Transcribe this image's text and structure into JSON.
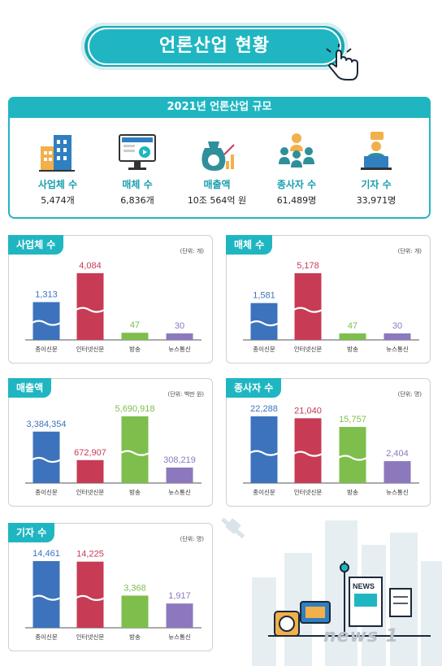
{
  "title": "언론산업 현황",
  "summary": {
    "title": "2021년 언론산업 규모",
    "items": [
      {
        "label": "사업체 수",
        "value": "5,474개",
        "icon": "building-icon"
      },
      {
        "label": "매체 수",
        "value": "6,836개",
        "icon": "news-monitor-icon"
      },
      {
        "label": "매출액",
        "value": "10조 564억 원",
        "icon": "money-bag-chart-icon"
      },
      {
        "label": "종사자 수",
        "value": "61,489명",
        "icon": "people-group-icon"
      },
      {
        "label": "기자 수",
        "value": "33,971명",
        "icon": "reporter-laptop-icon"
      }
    ]
  },
  "watermark": "news 1",
  "colors": {
    "teal": "#1fb6c2",
    "paper": "#3d73bd",
    "internet": "#c73b55",
    "broadcast": "#7dbe4c",
    "newswire": "#8c79bd"
  },
  "chart_data": [
    {
      "type": "bar",
      "title": "사업체 수",
      "unit": "(단위: 개)",
      "categories": [
        "종이신문",
        "인터넷신문",
        "방송",
        "뉴스통신"
      ],
      "values": [
        1313,
        4084,
        47,
        30
      ],
      "labels": [
        "1,313",
        "4,084",
        "47",
        "30"
      ],
      "broken": [
        true,
        true,
        false,
        false
      ]
    },
    {
      "type": "bar",
      "title": "매체 수",
      "unit": "(단위: 개)",
      "categories": [
        "종이신문",
        "인터넷신문",
        "방송",
        "뉴스통신"
      ],
      "values": [
        1581,
        5178,
        47,
        30
      ],
      "labels": [
        "1,581",
        "5,178",
        "47",
        "30"
      ],
      "broken": [
        true,
        true,
        false,
        false
      ]
    },
    {
      "type": "bar",
      "title": "매출액",
      "unit": "(단위: 백만 원)",
      "categories": [
        "종이신문",
        "인터넷신문",
        "방송",
        "뉴스통신"
      ],
      "values": [
        3384354,
        672907,
        5690918,
        308219
      ],
      "labels": [
        "3,384,354",
        "672,907",
        "5,690,918",
        "308,219"
      ],
      "broken": [
        true,
        false,
        true,
        false
      ]
    },
    {
      "type": "bar",
      "title": "종사자 수",
      "unit": "(단위: 명)",
      "categories": [
        "종이신문",
        "인터넷신문",
        "방송",
        "뉴스통신"
      ],
      "values": [
        22288,
        21040,
        15757,
        2404
      ],
      "labels": [
        "22,288",
        "21,040",
        "15,757",
        "2,404"
      ],
      "broken": [
        true,
        true,
        true,
        false
      ]
    },
    {
      "type": "bar",
      "title": "기자 수",
      "unit": "(단위: 명)",
      "categories": [
        "종이신문",
        "인터넷신문",
        "방송",
        "뉴스통신"
      ],
      "values": [
        14461,
        14225,
        3368,
        1917
      ],
      "labels": [
        "14,461",
        "14,225",
        "3,368",
        "1,917"
      ],
      "broken": [
        true,
        true,
        false,
        false
      ]
    }
  ]
}
